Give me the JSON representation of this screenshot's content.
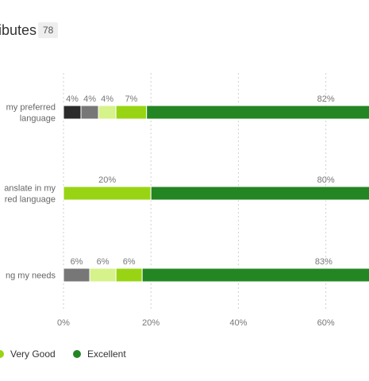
{
  "header": {
    "title": "ibutes",
    "badge": "78"
  },
  "legend": [
    {
      "label": "Very Good",
      "color": "#99d414"
    },
    {
      "label": "Excellent",
      "color": "#238623"
    }
  ],
  "colors": [
    "#2b2b2b",
    "#777777",
    "#d6f28a",
    "#99d414",
    "#238623"
  ],
  "chart_data": {
    "type": "bar",
    "orientation": "horizontal",
    "stacked": true,
    "categories": [
      [
        "my preferred",
        "language"
      ],
      [
        "anslate in my",
        "red language"
      ],
      [
        "ng my needs"
      ]
    ],
    "series_values": [
      [
        4,
        4,
        4,
        7,
        82
      ],
      [
        0,
        0,
        0,
        20,
        80
      ],
      [
        0,
        6,
        6,
        6,
        83
      ]
    ],
    "value_labels": [
      [
        "4%",
        "4%",
        "4%",
        "7%",
        "82%"
      ],
      [
        "",
        "",
        "",
        "20%",
        "80%"
      ],
      [
        "",
        "6%",
        "6%",
        "6%",
        "83%"
      ]
    ],
    "xticks": [
      "0%",
      "20%",
      "40%",
      "60%"
    ],
    "xlim": [
      0,
      100
    ],
    "grid": true,
    "legend_position": "bottom"
  }
}
